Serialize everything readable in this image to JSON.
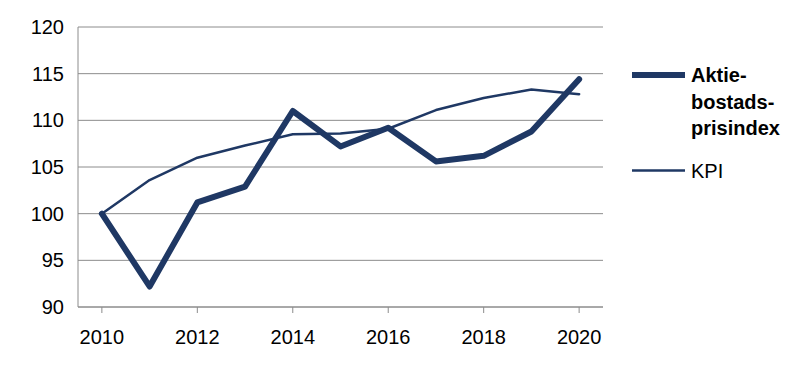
{
  "chart_data": {
    "type": "line",
    "x": [
      2010,
      2011,
      2012,
      2013,
      2014,
      2015,
      2016,
      2017,
      2018,
      2019,
      2020
    ],
    "series": [
      {
        "name": "Aktie-bostads-prisindex",
        "color": "#1f3864",
        "values": [
          100,
          92.2,
          101.2,
          102.9,
          111,
          107.2,
          109.2,
          105.6,
          106.2,
          108.8,
          114.4
        ]
      },
      {
        "name": "KPI",
        "color": "#1f3864",
        "values": [
          100,
          103.6,
          106,
          107.3,
          108.5,
          108.6,
          109.1,
          111.1,
          112.4,
          113.3,
          112.8
        ]
      }
    ],
    "xlim": [
      2009.5,
      2020.5
    ],
    "xticks": [
      2010,
      2012,
      2014,
      2016,
      2018,
      2020
    ],
    "ylim": [
      90,
      120
    ],
    "yticks": [
      90,
      95,
      100,
      105,
      110,
      115,
      120
    ],
    "grid": true,
    "legend": "right"
  }
}
